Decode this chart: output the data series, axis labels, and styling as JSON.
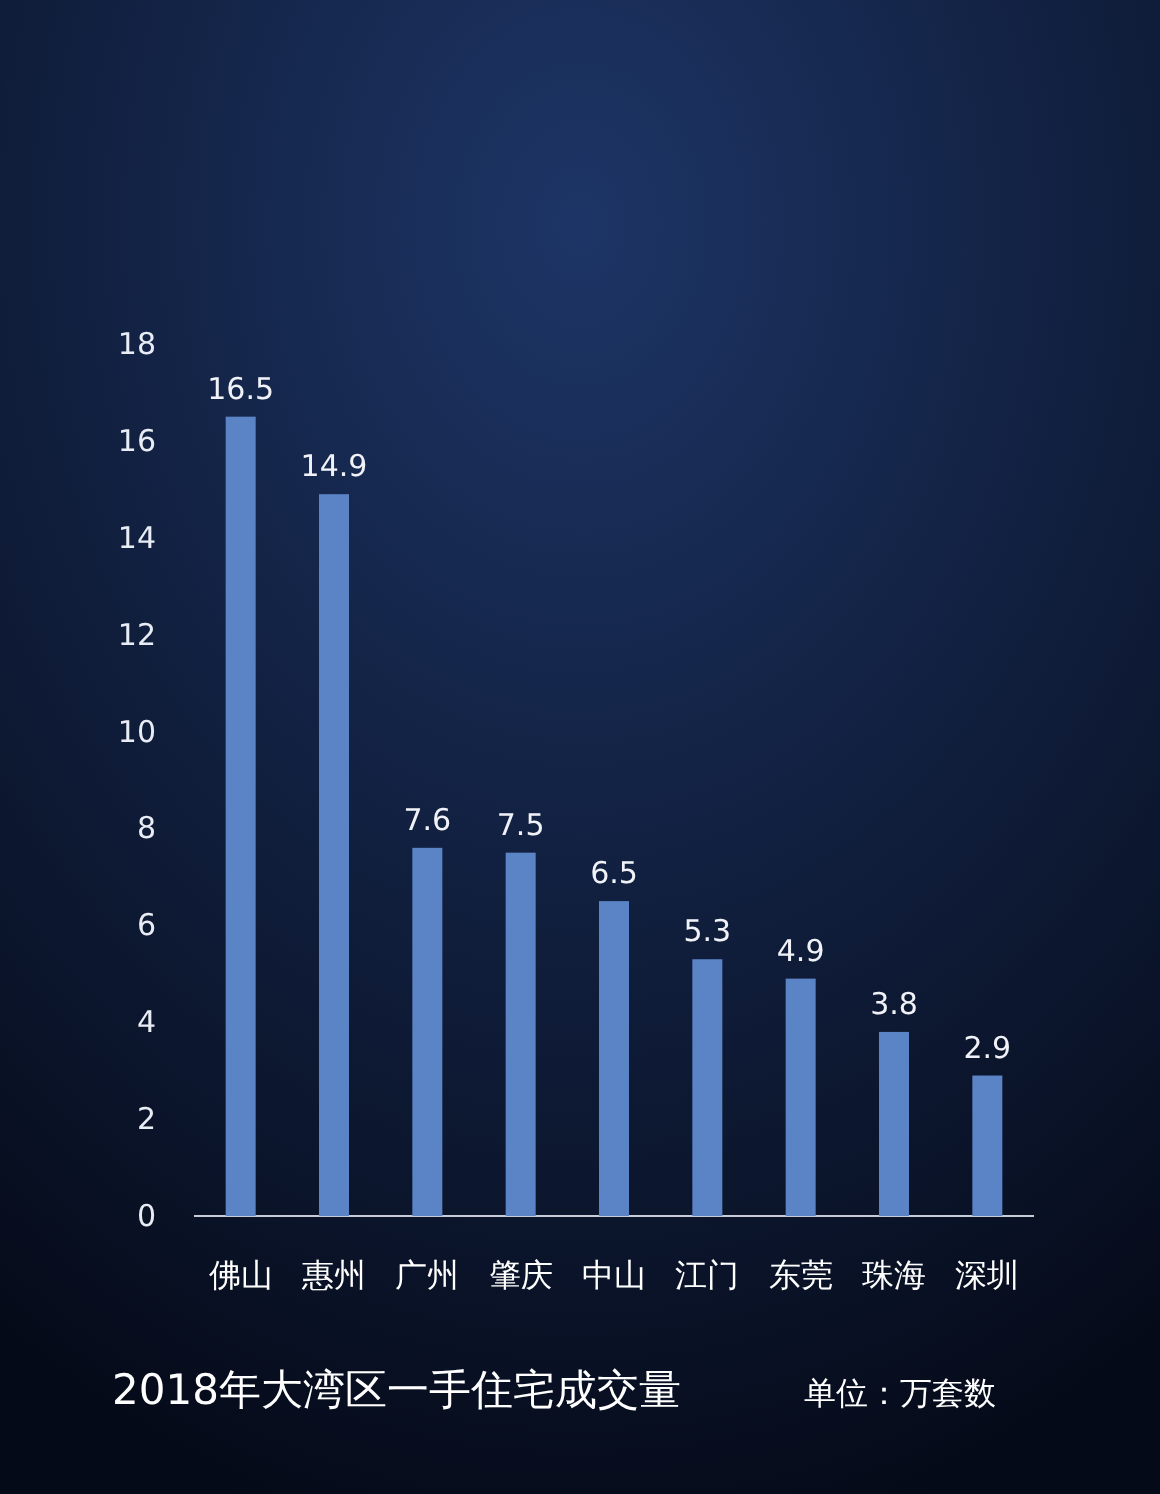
{
  "chart_data": {
    "type": "bar",
    "title": "2018年大湾区一手住宅成交量",
    "annotations": [
      "单位：万套数"
    ],
    "categories": [
      "佛山",
      "惠州",
      "广州",
      "肇庆",
      "中山",
      "江门",
      "东莞",
      "珠海",
      "深圳"
    ],
    "values": [
      16.5,
      14.9,
      7.6,
      7.5,
      6.5,
      5.3,
      4.9,
      3.8,
      2.9
    ],
    "color": "#5b84c6",
    "ylim": [
      0,
      18
    ],
    "yticks": [
      0,
      2,
      4,
      6,
      8,
      10,
      12,
      14,
      16,
      18
    ],
    "data_labels": true
  }
}
